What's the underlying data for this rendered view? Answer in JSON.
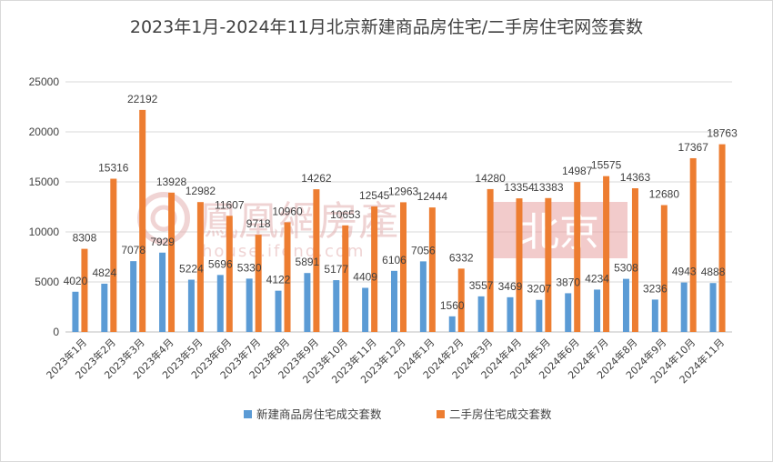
{
  "chart_data": {
    "type": "bar",
    "title": "2023年1月-2024年11月北京新建商品房住宅/二手房住宅网签套数",
    "xlabel": "",
    "ylabel": "",
    "ylim": [
      0,
      25000
    ],
    "yticks": [
      0,
      5000,
      10000,
      15000,
      20000,
      25000
    ],
    "grid": true,
    "legend": "bottom",
    "categories": [
      "2023年1月",
      "2023年2月",
      "2023年3月",
      "2023年4月",
      "2023年5月",
      "2023年6月",
      "2023年7月",
      "2023年8月",
      "2023年9月",
      "2023年10月",
      "2023年11月",
      "2023年12月",
      "2024年1月",
      "2024年2月",
      "2024年3月",
      "2024年4月",
      "2024年5月",
      "2024年6月",
      "2024年7月",
      "2024年8月",
      "2024年9月",
      "2024年10月",
      "2024年11月"
    ],
    "series": [
      {
        "name": "新建商品房住宅成交套数",
        "color": "#5b9bd5",
        "values": [
          4020,
          4824,
          7078,
          7929,
          5224,
          5696,
          5330,
          4122,
          5891,
          5177,
          4409,
          6106,
          7056,
          1560,
          3557,
          3469,
          3207,
          3870,
          4234,
          5308,
          3236,
          4943,
          4888
        ]
      },
      {
        "name": "二手房住宅成交套数",
        "color": "#ed7d31",
        "values": [
          8308,
          15316,
          22192,
          13928,
          12982,
          11607,
          9718,
          10960,
          14262,
          10653,
          12545,
          12963,
          12444,
          6332,
          14280,
          13354,
          13383,
          14987,
          15575,
          14363,
          12680,
          17367,
          18763
        ]
      }
    ]
  },
  "watermark": {
    "brand": "鳳凰網房產",
    "site": "house.ifeng.com",
    "city": "北京"
  }
}
